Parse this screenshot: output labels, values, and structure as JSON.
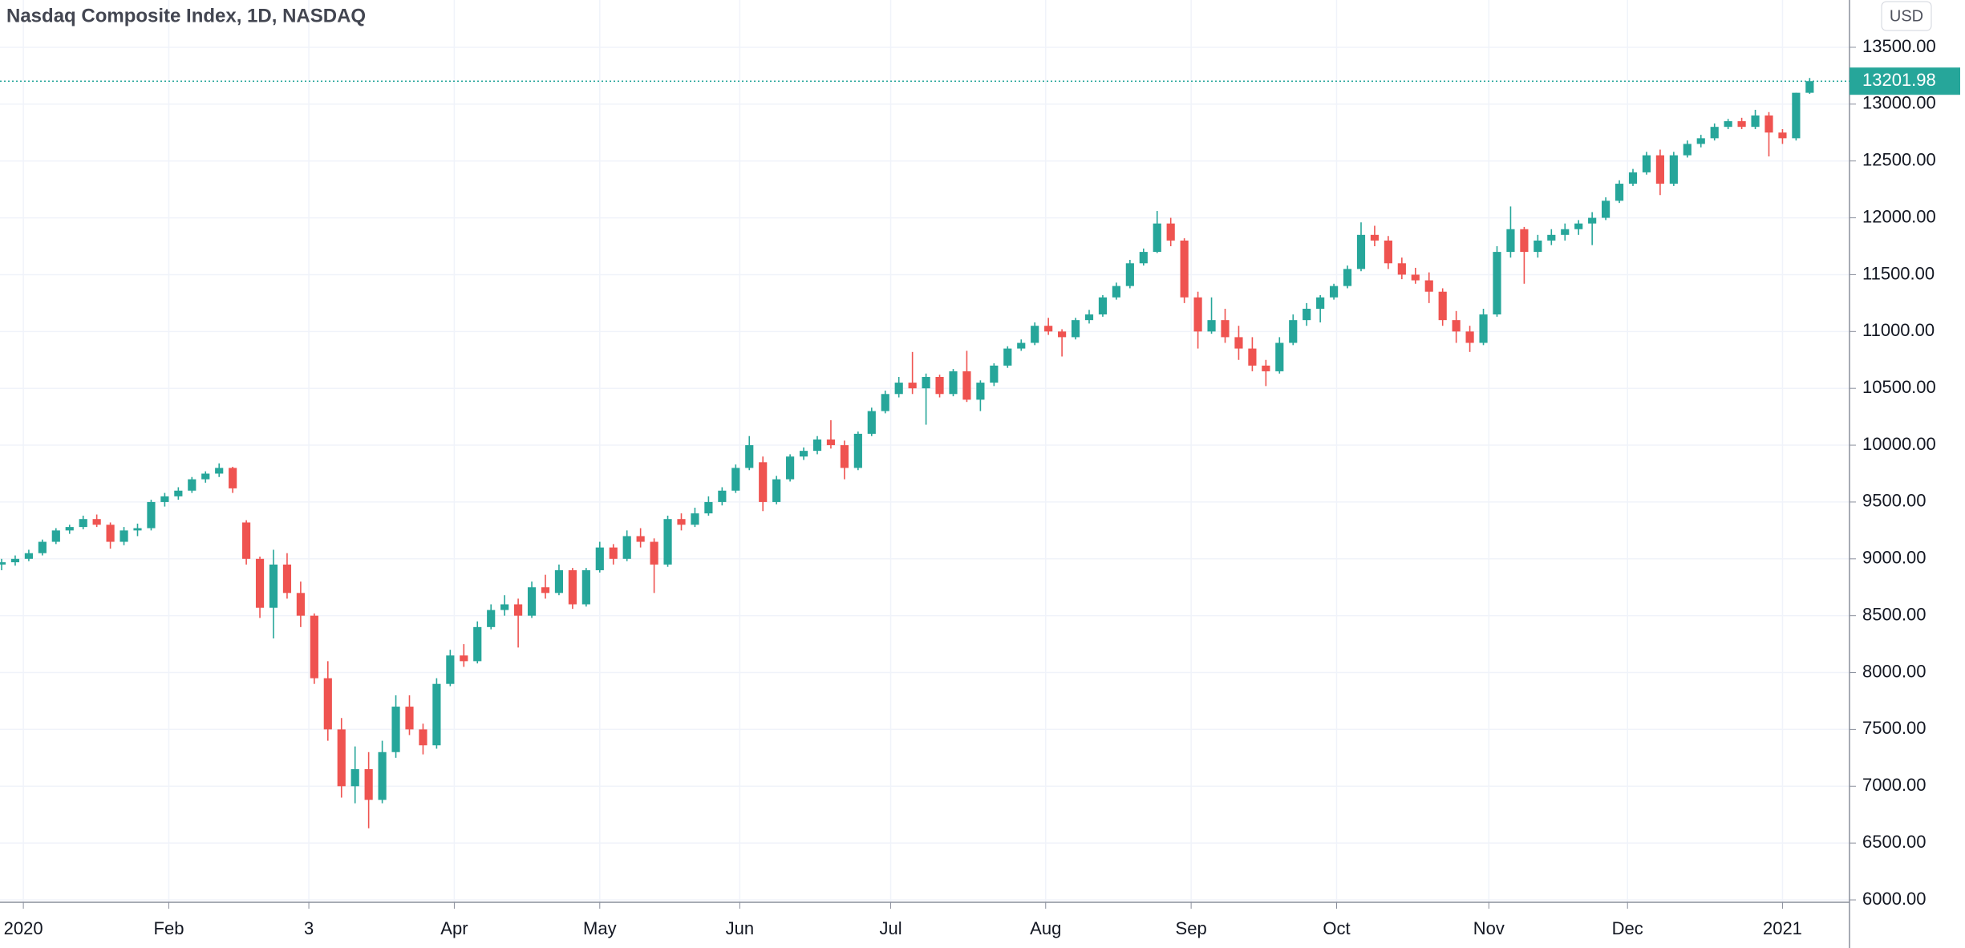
{
  "chart_data": {
    "type": "candlestick",
    "title": "Nasdaq Composite Index, 1D, NASDAQ",
    "currency": "USD",
    "up_color": "#26a69a",
    "down_color": "#ef5350",
    "grid": true,
    "ylim": [
      5979,
      13916
    ],
    "yticks": [
      {
        "value": 6000,
        "label": "6000.00"
      },
      {
        "value": 6500,
        "label": "6500.00"
      },
      {
        "value": 7000,
        "label": "7000.00"
      },
      {
        "value": 7500,
        "label": "7500.00"
      },
      {
        "value": 8000,
        "label": "8000.00"
      },
      {
        "value": 8500,
        "label": "8500.00"
      },
      {
        "value": 9000,
        "label": "9000.00"
      },
      {
        "value": 9500,
        "label": "9500.00"
      },
      {
        "value": 10000,
        "label": "10000.00"
      },
      {
        "value": 10500,
        "label": "10500.00"
      },
      {
        "value": 11000,
        "label": "11000.00"
      },
      {
        "value": 11500,
        "label": "11500.00"
      },
      {
        "value": 12000,
        "label": "12000.00"
      },
      {
        "value": 12500,
        "label": "12500.00"
      },
      {
        "value": 13000,
        "label": "13000.00"
      },
      {
        "value": 13500,
        "label": "13500.00"
      }
    ],
    "xticks": [
      {
        "value": 1.6,
        "label": "2020"
      },
      {
        "value": 12.3,
        "label": "Feb"
      },
      {
        "value": 22.6,
        "label": "3"
      },
      {
        "value": 33.3,
        "label": "Apr"
      },
      {
        "value": 44,
        "label": "May"
      },
      {
        "value": 54.3,
        "label": "Jun"
      },
      {
        "value": 65.4,
        "label": "Jul"
      },
      {
        "value": 76.8,
        "label": "Aug"
      },
      {
        "value": 87.5,
        "label": "Sep"
      },
      {
        "value": 98.2,
        "label": "Oct"
      },
      {
        "value": 109.4,
        "label": "Nov"
      },
      {
        "value": 119.6,
        "label": "Dec"
      },
      {
        "value": 131,
        "label": "2021"
      }
    ],
    "ohlc": [
      [
        8950,
        9000,
        8900,
        8970
      ],
      [
        8970,
        9030,
        8940,
        9000
      ],
      [
        9000,
        9080,
        8980,
        9050
      ],
      [
        9050,
        9170,
        9030,
        9150
      ],
      [
        9150,
        9270,
        9130,
        9250
      ],
      [
        9250,
        9300,
        9220,
        9280
      ],
      [
        9280,
        9380,
        9260,
        9350
      ],
      [
        9350,
        9390,
        9280,
        9300
      ],
      [
        9300,
        9320,
        9090,
        9150
      ],
      [
        9150,
        9280,
        9120,
        9250
      ],
      [
        9250,
        9310,
        9200,
        9270
      ],
      [
        9270,
        9520,
        9250,
        9500
      ],
      [
        9500,
        9580,
        9460,
        9550
      ],
      [
        9550,
        9630,
        9520,
        9600
      ],
      [
        9600,
        9720,
        9580,
        9700
      ],
      [
        9700,
        9770,
        9670,
        9750
      ],
      [
        9750,
        9840,
        9720,
        9800
      ],
      [
        9800,
        9810,
        9580,
        9620
      ],
      [
        9320,
        9340,
        8950,
        9000
      ],
      [
        9000,
        9020,
        8480,
        8570
      ],
      [
        8570,
        9080,
        8300,
        8950
      ],
      [
        8950,
        9050,
        8650,
        8700
      ],
      [
        8700,
        8800,
        8400,
        8500
      ],
      [
        8500,
        8520,
        7900,
        7950
      ],
      [
        7950,
        8100,
        7400,
        7500
      ],
      [
        7500,
        7600,
        6900,
        7000
      ],
      [
        7000,
        7350,
        6850,
        7150
      ],
      [
        7150,
        7300,
        6630,
        6880
      ],
      [
        6880,
        7400,
        6850,
        7300
      ],
      [
        7300,
        7800,
        7250,
        7700
      ],
      [
        7700,
        7800,
        7450,
        7500
      ],
      [
        7500,
        7550,
        7280,
        7360
      ],
      [
        7360,
        7950,
        7330,
        7900
      ],
      [
        7900,
        8200,
        7880,
        8150
      ],
      [
        8150,
        8250,
        8050,
        8100
      ],
      [
        8100,
        8450,
        8080,
        8400
      ],
      [
        8400,
        8600,
        8380,
        8550
      ],
      [
        8550,
        8680,
        8500,
        8600
      ],
      [
        8600,
        8650,
        8220,
        8500
      ],
      [
        8500,
        8800,
        8480,
        8750
      ],
      [
        8750,
        8860,
        8650,
        8700
      ],
      [
        8700,
        8950,
        8680,
        8900
      ],
      [
        8900,
        8920,
        8560,
        8600
      ],
      [
        8600,
        8920,
        8580,
        8900
      ],
      [
        8900,
        9150,
        8880,
        9100
      ],
      [
        9100,
        9130,
        8950,
        9000
      ],
      [
        9000,
        9250,
        8980,
        9200
      ],
      [
        9200,
        9270,
        9100,
        9150
      ],
      [
        9150,
        9180,
        8700,
        8950
      ],
      [
        8950,
        9380,
        8930,
        9350
      ],
      [
        9350,
        9400,
        9250,
        9300
      ],
      [
        9300,
        9450,
        9280,
        9400
      ],
      [
        9400,
        9550,
        9380,
        9500
      ],
      [
        9500,
        9630,
        9470,
        9600
      ],
      [
        9600,
        9830,
        9580,
        9800
      ],
      [
        9800,
        10080,
        9780,
        10000
      ],
      [
        9850,
        9900,
        9420,
        9500
      ],
      [
        9500,
        9730,
        9480,
        9700
      ],
      [
        9700,
        9920,
        9680,
        9900
      ],
      [
        9900,
        9980,
        9870,
        9950
      ],
      [
        9950,
        10080,
        9920,
        10050
      ],
      [
        10050,
        10220,
        9970,
        10000
      ],
      [
        10000,
        10040,
        9700,
        9800
      ],
      [
        9800,
        10120,
        9780,
        10100
      ],
      [
        10100,
        10330,
        10080,
        10300
      ],
      [
        10300,
        10480,
        10280,
        10450
      ],
      [
        10450,
        10600,
        10420,
        10550
      ],
      [
        10550,
        10820,
        10450,
        10500
      ],
      [
        10500,
        10630,
        10180,
        10600
      ],
      [
        10600,
        10620,
        10420,
        10450
      ],
      [
        10450,
        10670,
        10430,
        10650
      ],
      [
        10650,
        10830,
        10380,
        10400
      ],
      [
        10400,
        10570,
        10300,
        10550
      ],
      [
        10550,
        10720,
        10520,
        10700
      ],
      [
        10700,
        10870,
        10680,
        10850
      ],
      [
        10850,
        10930,
        10830,
        10900
      ],
      [
        10900,
        11080,
        10880,
        11050
      ],
      [
        11050,
        11120,
        10970,
        11000
      ],
      [
        11000,
        11020,
        10780,
        10950
      ],
      [
        10950,
        11120,
        10930,
        11100
      ],
      [
        11100,
        11190,
        11070,
        11150
      ],
      [
        11150,
        11320,
        11130,
        11300
      ],
      [
        11300,
        11430,
        11280,
        11400
      ],
      [
        11400,
        11630,
        11380,
        11600
      ],
      [
        11600,
        11730,
        11580,
        11700
      ],
      [
        11700,
        12060,
        11690,
        11950
      ],
      [
        11950,
        12000,
        11750,
        11800
      ],
      [
        11800,
        11820,
        11250,
        11300
      ],
      [
        11300,
        11350,
        10850,
        11000
      ],
      [
        11000,
        11300,
        10980,
        11100
      ],
      [
        11100,
        11200,
        10900,
        10950
      ],
      [
        10950,
        11050,
        10750,
        10850
      ],
      [
        10850,
        10950,
        10650,
        10700
      ],
      [
        10700,
        10750,
        10520,
        10650
      ],
      [
        10650,
        10950,
        10630,
        10900
      ],
      [
        10900,
        11150,
        10880,
        11100
      ],
      [
        11100,
        11250,
        11050,
        11200
      ],
      [
        11200,
        11320,
        11080,
        11300
      ],
      [
        11300,
        11420,
        11280,
        11400
      ],
      [
        11400,
        11580,
        11380,
        11550
      ],
      [
        11550,
        11960,
        11530,
        11850
      ],
      [
        11850,
        11930,
        11750,
        11800
      ],
      [
        11800,
        11840,
        11550,
        11600
      ],
      [
        11600,
        11650,
        11460,
        11500
      ],
      [
        11500,
        11560,
        11420,
        11450
      ],
      [
        11450,
        11520,
        11250,
        11350
      ],
      [
        11350,
        11380,
        11050,
        11100
      ],
      [
        11100,
        11180,
        10900,
        11000
      ],
      [
        11000,
        11050,
        10820,
        10900
      ],
      [
        10900,
        11200,
        10880,
        11150
      ],
      [
        11150,
        11750,
        11130,
        11700
      ],
      [
        11700,
        12100,
        11650,
        11900
      ],
      [
        11900,
        11920,
        11420,
        11700
      ],
      [
        11700,
        11850,
        11650,
        11800
      ],
      [
        11800,
        11900,
        11760,
        11850
      ],
      [
        11850,
        11950,
        11800,
        11900
      ],
      [
        11900,
        11980,
        11850,
        11950
      ],
      [
        11950,
        12050,
        11760,
        12000
      ],
      [
        12000,
        12180,
        11980,
        12150
      ],
      [
        12150,
        12330,
        12130,
        12300
      ],
      [
        12300,
        12430,
        12280,
        12400
      ],
      [
        12400,
        12580,
        12380,
        12550
      ],
      [
        12550,
        12600,
        12200,
        12300
      ],
      [
        12300,
        12580,
        12280,
        12550
      ],
      [
        12550,
        12680,
        12530,
        12650
      ],
      [
        12650,
        12730,
        12620,
        12700
      ],
      [
        12700,
        12830,
        12680,
        12800
      ],
      [
        12800,
        12870,
        12780,
        12850
      ],
      [
        12850,
        12880,
        12780,
        12800
      ],
      [
        12800,
        12950,
        12780,
        12900
      ],
      [
        12900,
        12930,
        12540,
        12750
      ],
      [
        12750,
        12780,
        12650,
        12700
      ],
      [
        12700,
        13100,
        12680,
        13100
      ],
      [
        13100,
        13230,
        13090,
        13201.98
      ]
    ]
  }
}
